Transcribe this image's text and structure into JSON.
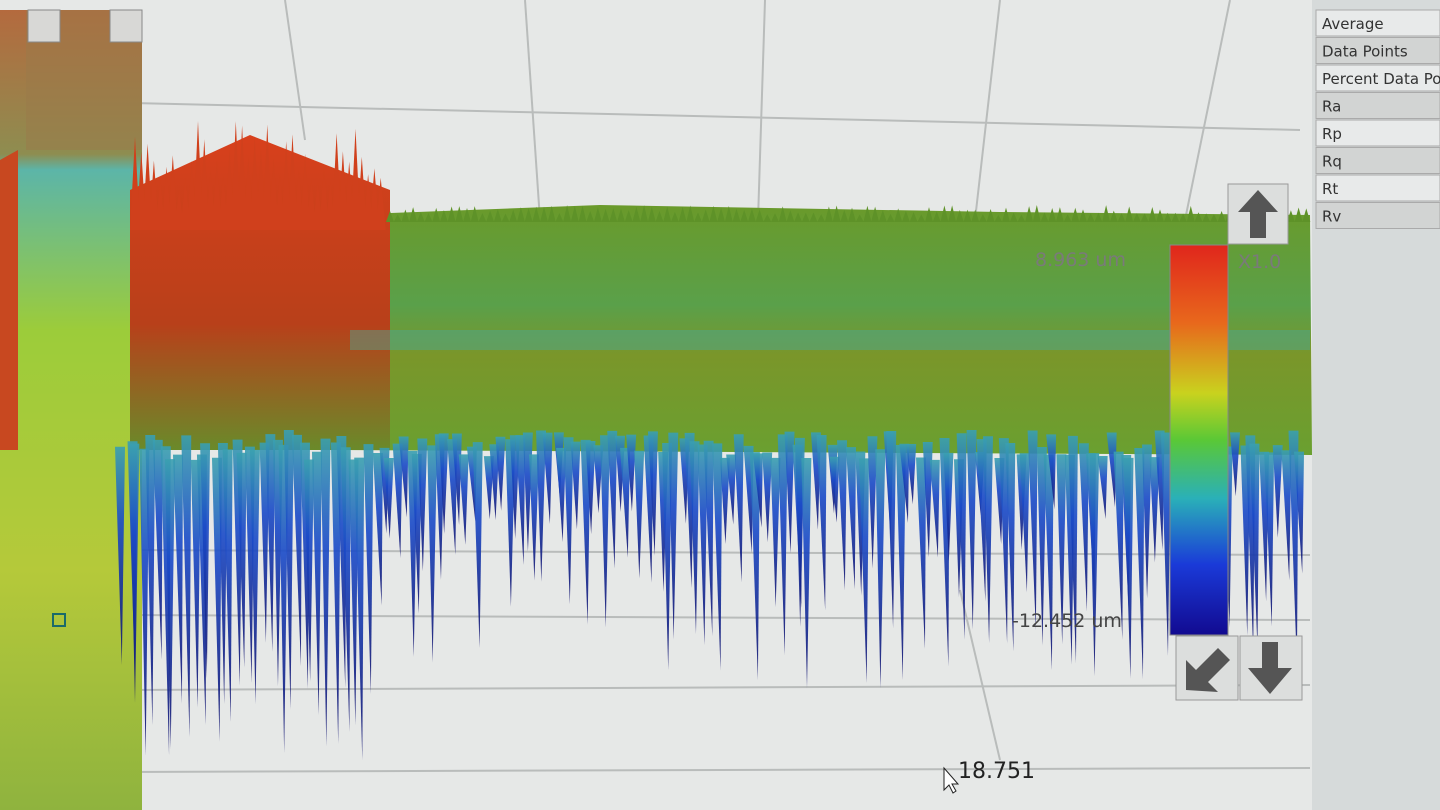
{
  "color_scale": {
    "max_label": "8.963 um",
    "min_label": "-12.452 um",
    "zoom": "X1.0"
  },
  "axis_label": "18.751",
  "stats_panel": {
    "items": [
      "Average",
      "Data Points",
      "Percent Data Po",
      "Ra",
      "Rp",
      "Rq",
      "Rt",
      "Rv"
    ]
  }
}
